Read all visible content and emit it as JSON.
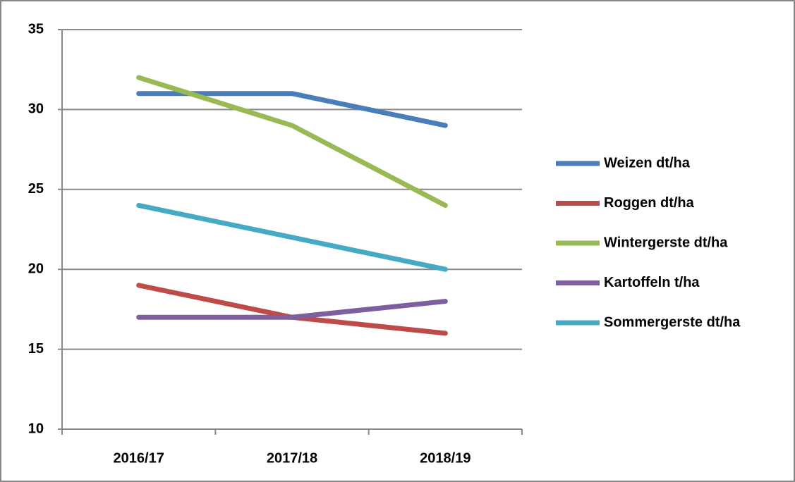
{
  "chart_data": {
    "type": "line",
    "categories": [
      "2016/17",
      "2017/18",
      "2018/19"
    ],
    "series": [
      {
        "name": "Weizen dt/ha",
        "color": "#4a7ebb",
        "values": [
          31,
          31,
          29
        ]
      },
      {
        "name": "Roggen dt/ha",
        "color": "#be4b48",
        "values": [
          19,
          17,
          16
        ]
      },
      {
        "name": "Wintergerste dt/ha",
        "color": "#98b954",
        "values": [
          32,
          29,
          24
        ]
      },
      {
        "name": "Kartoffeln t/ha",
        "color": "#7d5fa0",
        "values": [
          17,
          17,
          18
        ]
      },
      {
        "name": "Sommergerste dt/ha",
        "color": "#46aac5",
        "values": [
          24,
          22,
          20
        ]
      }
    ],
    "ylim": [
      10,
      35
    ],
    "yticks": [
      10,
      15,
      20,
      25,
      30,
      35
    ],
    "grid": true,
    "legend": "right"
  }
}
